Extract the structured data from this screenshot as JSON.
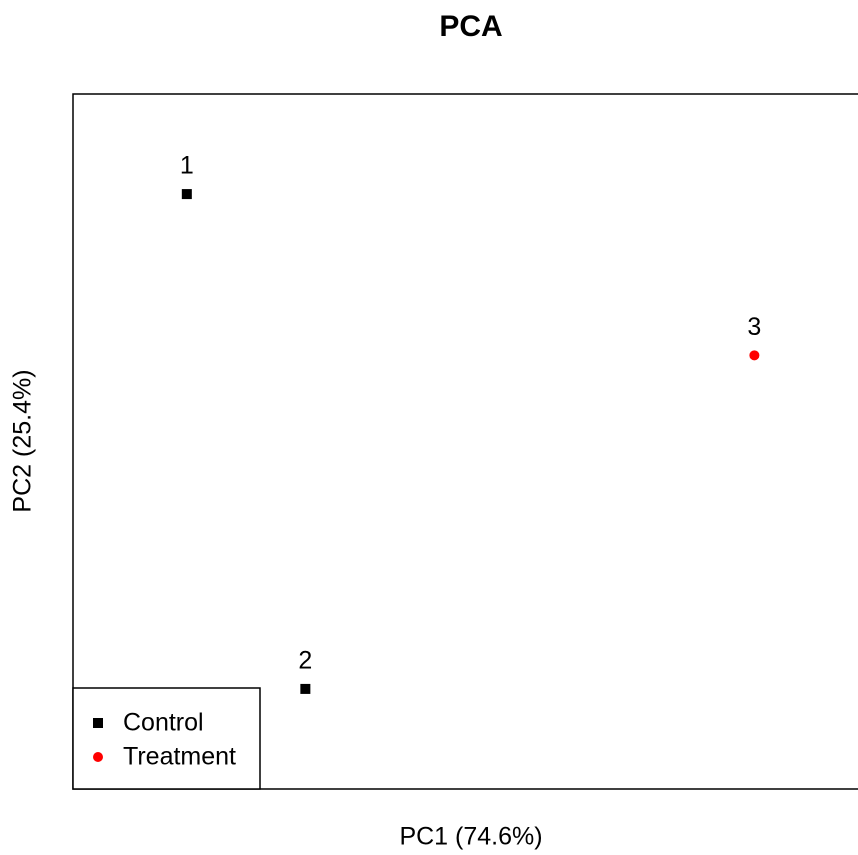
{
  "chart_data": {
    "type": "scatter",
    "title": "PCA",
    "x_label": "PC1 (74.6%)",
    "y_label": "PC2 (25.4%)",
    "xlim": [
      0,
      100
    ],
    "ylim": [
      0,
      100
    ],
    "grid": false,
    "legend_position": "bottom-left",
    "series": [
      {
        "name": "Control",
        "color": "#000000",
        "marker": "square",
        "x": [
          14.5,
          29.6
        ],
        "y": [
          85.6,
          14.4
        ],
        "labels": [
          "1",
          "2"
        ]
      },
      {
        "name": "Treatment",
        "color": "#ff0000",
        "marker": "circle",
        "x": [
          86.8
        ],
        "y": [
          62.4
        ],
        "labels": [
          "3"
        ]
      }
    ]
  }
}
